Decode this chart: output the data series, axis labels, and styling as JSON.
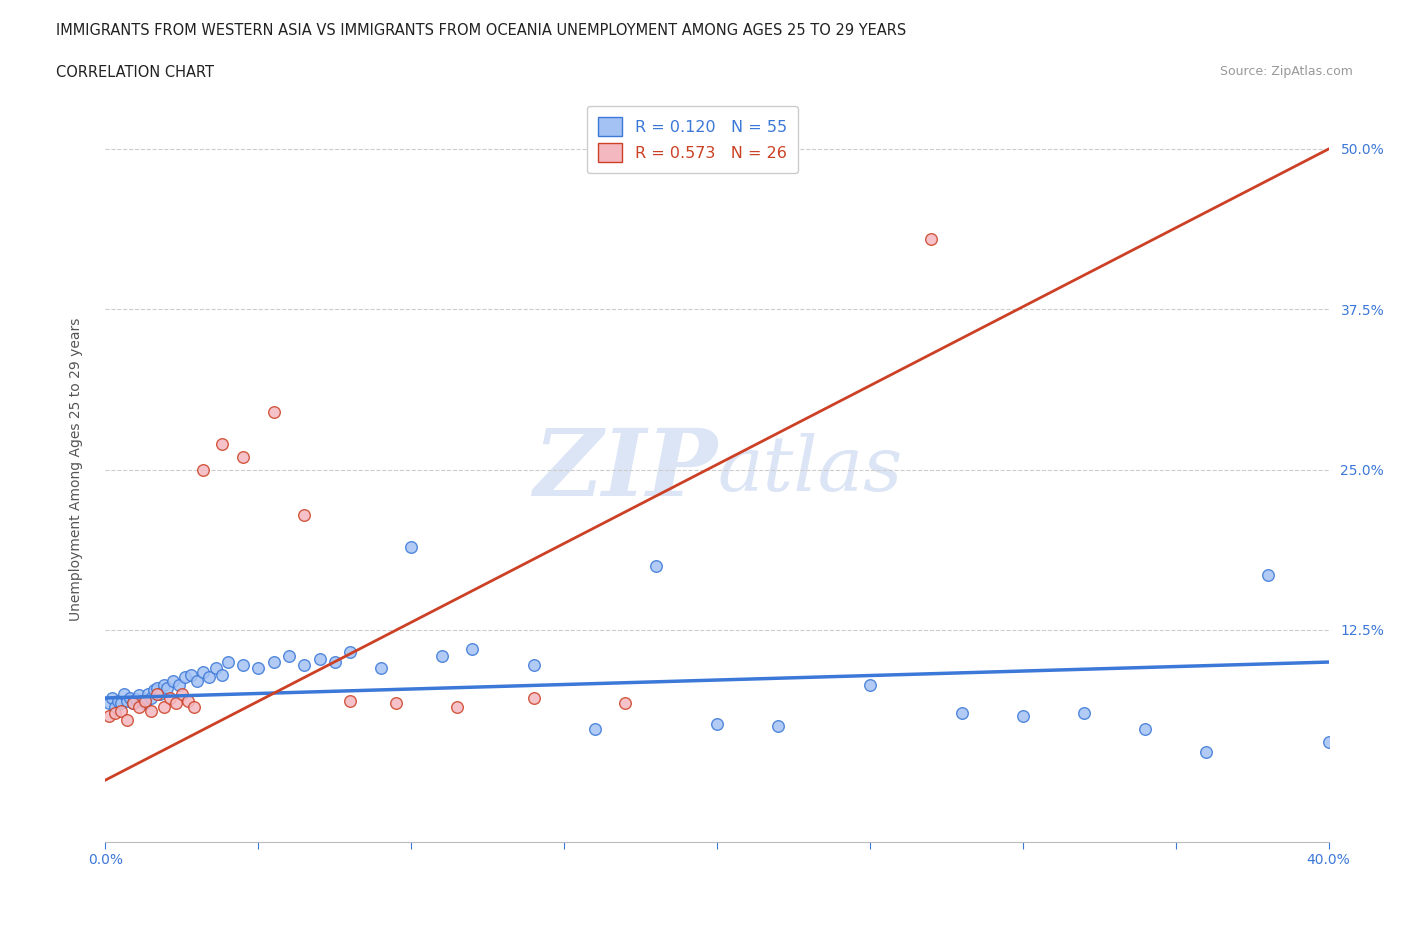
{
  "title_line1": "IMMIGRANTS FROM WESTERN ASIA VS IMMIGRANTS FROM OCEANIA UNEMPLOYMENT AMONG AGES 25 TO 29 YEARS",
  "title_line2": "CORRELATION CHART",
  "source_text": "Source: ZipAtlas.com",
  "ylabel": "Unemployment Among Ages 25 to 29 years",
  "xlim": [
    0.0,
    0.4
  ],
  "ylim": [
    -0.04,
    0.54
  ],
  "x_ticks": [
    0.0,
    0.05,
    0.1,
    0.15,
    0.2,
    0.25,
    0.3,
    0.35,
    0.4
  ],
  "y_ticks": [
    0.0,
    0.125,
    0.25,
    0.375,
    0.5
  ],
  "y_tick_labels": [
    "",
    "12.5%",
    "25.0%",
    "37.5%",
    "50.0%"
  ],
  "color_blue": "#a4c2f4",
  "color_pink": "#f4b8c1",
  "color_blue_line": "#3c78d8",
  "color_pink_line": "#cc4125",
  "watermark_color": "#dce5f5",
  "legend_R1": "R = 0.120",
  "legend_N1": "N = 55",
  "legend_R2": "R = 0.573",
  "legend_N2": "N = 26",
  "western_asia_x": [
    0.001,
    0.002,
    0.003,
    0.004,
    0.005,
    0.006,
    0.007,
    0.008,
    0.009,
    0.01,
    0.011,
    0.012,
    0.013,
    0.014,
    0.015,
    0.016,
    0.017,
    0.018,
    0.019,
    0.02,
    0.022,
    0.024,
    0.026,
    0.028,
    0.03,
    0.032,
    0.034,
    0.036,
    0.038,
    0.04,
    0.045,
    0.05,
    0.055,
    0.06,
    0.065,
    0.07,
    0.075,
    0.08,
    0.09,
    0.1,
    0.11,
    0.12,
    0.14,
    0.16,
    0.18,
    0.2,
    0.22,
    0.25,
    0.28,
    0.3,
    0.32,
    0.34,
    0.36,
    0.38,
    0.4
  ],
  "western_asia_y": [
    0.068,
    0.072,
    0.065,
    0.07,
    0.068,
    0.075,
    0.07,
    0.072,
    0.068,
    0.071,
    0.074,
    0.07,
    0.068,
    0.075,
    0.072,
    0.078,
    0.08,
    0.075,
    0.082,
    0.08,
    0.085,
    0.082,
    0.088,
    0.09,
    0.085,
    0.092,
    0.088,
    0.095,
    0.09,
    0.1,
    0.098,
    0.095,
    0.1,
    0.105,
    0.098,
    0.102,
    0.1,
    0.108,
    0.095,
    0.19,
    0.105,
    0.11,
    0.098,
    0.048,
    0.175,
    0.052,
    0.05,
    0.082,
    0.06,
    0.058,
    0.06,
    0.048,
    0.03,
    0.168,
    0.038
  ],
  "oceania_x": [
    0.001,
    0.003,
    0.005,
    0.007,
    0.009,
    0.011,
    0.013,
    0.015,
    0.017,
    0.019,
    0.021,
    0.023,
    0.025,
    0.027,
    0.029,
    0.032,
    0.038,
    0.045,
    0.055,
    0.065,
    0.08,
    0.095,
    0.115,
    0.14,
    0.17,
    0.27
  ],
  "oceania_y": [
    0.058,
    0.06,
    0.062,
    0.055,
    0.068,
    0.065,
    0.07,
    0.062,
    0.075,
    0.065,
    0.072,
    0.068,
    0.075,
    0.07,
    0.065,
    0.25,
    0.27,
    0.26,
    0.295,
    0.215,
    0.07,
    0.068,
    0.065,
    0.072,
    0.068,
    0.43
  ],
  "blue_line_x0": 0.0,
  "blue_line_y0": 0.072,
  "blue_line_x1": 0.4,
  "blue_line_y1": 0.1,
  "pink_line_x0": 0.0,
  "pink_line_y0": 0.008,
  "pink_line_x1": 0.4,
  "pink_line_y1": 0.5
}
